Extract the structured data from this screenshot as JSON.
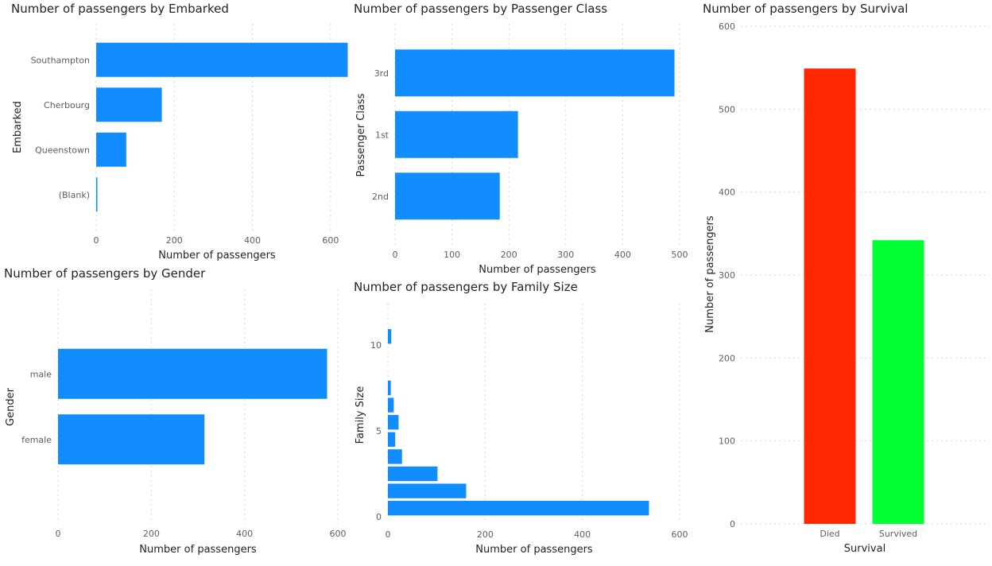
{
  "chart_data": [
    {
      "id": "embarked",
      "type": "bar",
      "orientation": "horizontal",
      "title": "Number of passengers by Embarked",
      "xlabel": "Number of passengers",
      "ylabel": "Embarked",
      "categories": [
        "Southampton",
        "Cherbourg",
        "Queenstown",
        "(Blank)"
      ],
      "values": [
        644,
        168,
        77,
        2
      ],
      "xlim": [
        0,
        700
      ],
      "xticks": [
        0,
        200,
        400,
        600
      ],
      "color": "#118DFF",
      "grid": true
    },
    {
      "id": "pclass",
      "type": "bar",
      "orientation": "horizontal",
      "title": "Number of passengers by Passenger Class",
      "xlabel": "Number of passengers",
      "ylabel": "Passenger Class",
      "categories": [
        "3rd",
        "1st",
        "2nd"
      ],
      "values": [
        491,
        216,
        184
      ],
      "xlim": [
        0,
        500
      ],
      "xticks": [
        0,
        100,
        200,
        300,
        400,
        500
      ],
      "color": "#118DFF",
      "grid": true
    },
    {
      "id": "survival",
      "type": "bar",
      "orientation": "vertical",
      "title": "Number of passengers by Survival",
      "xlabel": "Survival",
      "ylabel": "Number of passengers",
      "categories": [
        "Died",
        "Survived"
      ],
      "values": [
        549,
        342
      ],
      "colors": [
        "#FF2800",
        "#00FF33"
      ],
      "ylim": [
        0,
        600
      ],
      "yticks": [
        0,
        100,
        200,
        300,
        400,
        500,
        600
      ],
      "grid": true
    },
    {
      "id": "gender",
      "type": "bar",
      "orientation": "horizontal",
      "title": "Number of passengers by Gender",
      "xlabel": "Number of passengers",
      "ylabel": "Gender",
      "categories": [
        "male",
        "female"
      ],
      "values": [
        577,
        314
      ],
      "xlim": [
        0,
        600
      ],
      "xticks": [
        0,
        200,
        400,
        600
      ],
      "color": "#118DFF",
      "grid": true
    },
    {
      "id": "family",
      "type": "bar",
      "orientation": "horizontal",
      "title": "Number of passengers by Family Size",
      "xlabel": "Number of passengers",
      "ylabel": "Family Size",
      "y": [
        1,
        2,
        3,
        4,
        5,
        6,
        7,
        8,
        11
      ],
      "values": [
        537,
        161,
        102,
        29,
        15,
        22,
        12,
        6,
        7
      ],
      "ylim": [
        0,
        12
      ],
      "yticks": [
        0,
        5,
        10
      ],
      "xlim": [
        0,
        600
      ],
      "xticks": [
        0,
        200,
        400,
        600
      ],
      "color": "#118DFF",
      "grid": true
    }
  ]
}
